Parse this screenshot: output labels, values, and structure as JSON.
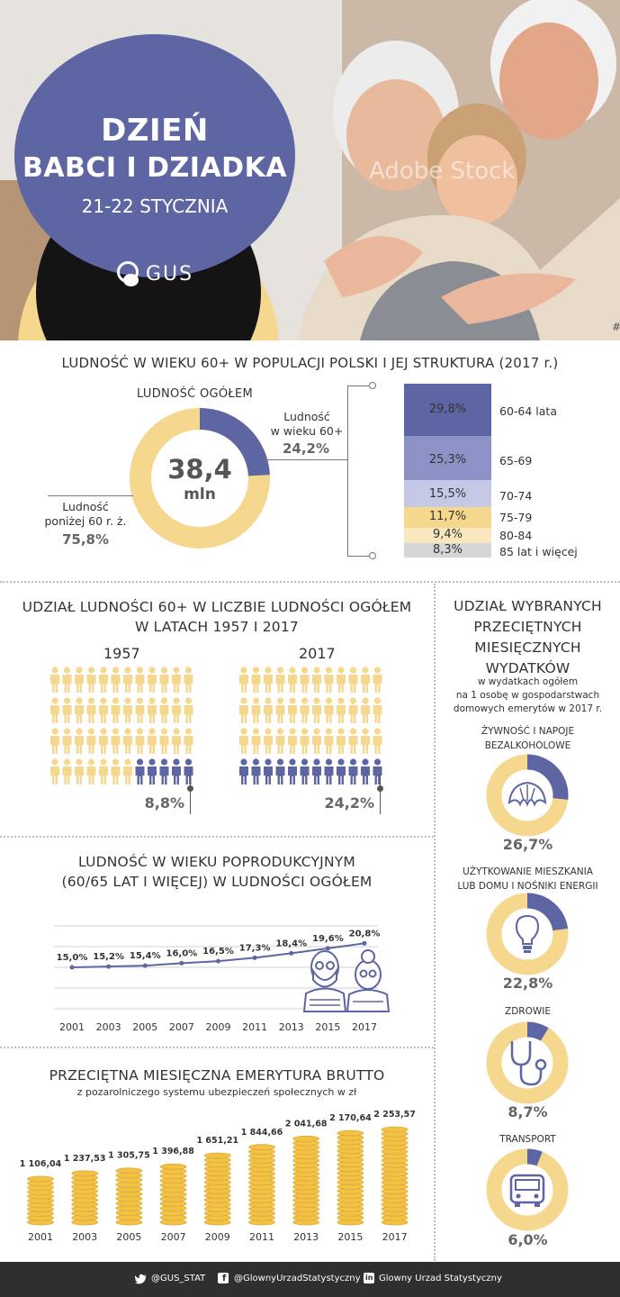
{
  "hero": {
    "title_line1": "DZIEŃ",
    "title_line2": "BABCI I DZIADKA",
    "date": "21-22 STYCZNIA",
    "logo_text": "GUS",
    "watermark": "Adobe Stock",
    "hash": "#"
  },
  "section1": {
    "title": "LUDNOŚĆ W WIEKU 60+ W POPULACJI POLSKI I JEJ STRUKTURA (2017 r.)",
    "donut_heading": "LUDNOŚĆ OGÓŁEM",
    "total_value": "38,4",
    "total_unit": "mln",
    "share_60_label_1": "Ludność",
    "share_60_label_2": "w wieku 60+",
    "share_60_value": "24,2%",
    "share_60_fraction": 0.242,
    "below_60_label_1": "Ludność",
    "below_60_label_2": "poniżej 60 r. ż.",
    "below_60_value": "75,8%",
    "structure": [
      {
        "pct": "29,8%",
        "value": 29.8,
        "label": "60-64 lata",
        "color": "#5e65a3"
      },
      {
        "pct": "25,3%",
        "value": 25.3,
        "label": "65-69",
        "color": "#8c92c6"
      },
      {
        "pct": "15,5%",
        "value": 15.5,
        "label": "70-74",
        "color": "#c5c9e6"
      },
      {
        "pct": "11,7%",
        "value": 11.7,
        "label": "75-79",
        "color": "#f6d78e"
      },
      {
        "pct": "9,4%",
        "value": 9.4,
        "label": "80-84",
        "color": "#f9e8bd"
      },
      {
        "pct": "8,3%",
        "value": 8.3,
        "label": "85 lat i więcej",
        "color": "#d6d6d6"
      }
    ]
  },
  "section2": {
    "title_line1": "UDZIAŁ LUDNOŚCI 60+ W LICZBIE LUDNOŚCI OGÓŁEM",
    "title_line2": "W LATACH 1957 I 2017",
    "year_a": "1957",
    "value_a": "8,8%",
    "filled_a": 5,
    "year_b": "2017",
    "value_b": "24,2%",
    "filled_b": 12
  },
  "section3": {
    "title_line1": "LUDNOŚĆ W WIEKU POPRODUKCYJNYM",
    "title_line2": "(60/65 LAT I WIĘCEJ) W LUDNOŚCI OGÓŁEM",
    "chart_data": {
      "type": "line",
      "x": [
        "2001",
        "2003",
        "2005",
        "2007",
        "2009",
        "2011",
        "2013",
        "2015",
        "2017"
      ],
      "values": [
        15.0,
        15.2,
        15.4,
        16.0,
        16.5,
        17.3,
        18.4,
        19.6,
        20.8
      ],
      "labels": [
        "15,0%",
        "15,2%",
        "15,4%",
        "16,0%",
        "16,5%",
        "17,3%",
        "18,4%",
        "19,6%",
        "20,8%"
      ],
      "ylim": [
        5,
        25
      ],
      "grid": true
    }
  },
  "section4": {
    "title": "PRZECIĘTNA MIESIĘCZNA EMERYTURA BRUTTO",
    "subtitle": "z pozarolniczego systemu ubezpieczeń społecznych w zł",
    "chart_data": {
      "type": "bar",
      "categories": [
        "2001",
        "2003",
        "2005",
        "2007",
        "2009",
        "2011",
        "2013",
        "2015",
        "2017"
      ],
      "values": [
        1106.04,
        1237.53,
        1305.75,
        1396.88,
        1651.21,
        1844.66,
        2041.68,
        2170.64,
        2253.57
      ],
      "labels": [
        "1 106,04",
        "1 237,53",
        "1 305,75",
        "1 396,88",
        "1 651,21",
        "1 844,66",
        "2 041,68",
        "2 170,64",
        "2 253,57"
      ],
      "ylim": [
        0,
        2300
      ]
    }
  },
  "section5": {
    "title_line1": "UDZIAŁ WYBRANYCH",
    "title_line2": "PRZECIĘTNYCH",
    "title_line3": "MIESIĘCZNYCH",
    "title_line4": "WYDATKÓW",
    "subtitle_line1": "w wydatkach ogółem",
    "subtitle_line2": "na 1 osobę w gospodarstwach",
    "subtitle_line3": "domowych emerytów w 2017 r.",
    "items": [
      {
        "label_1": "ŻYWNOŚĆ I NAPOJE",
        "label_2": "BEZALKOHOLOWE",
        "value": "26,7%",
        "fraction": 0.267,
        "icon": "croissant-icon"
      },
      {
        "label_1": "UŻYTKOWANIE MIESZKANIA",
        "label_2": "LUB DOMU I NOŚNIKI ENERGII",
        "value": "22,8%",
        "fraction": 0.228,
        "icon": "lightbulb-icon"
      },
      {
        "label_1": "ZDROWIE",
        "label_2": "",
        "value": "8,7%",
        "fraction": 0.087,
        "icon": "stethoscope-icon"
      },
      {
        "label_1": "TRANSPORT",
        "label_2": "",
        "value": "6,0%",
        "fraction": 0.06,
        "icon": "bus-icon"
      }
    ]
  },
  "footer": {
    "twitter": "@GUS_STAT",
    "facebook": "@GlownyUrzadStatystyczny",
    "linkedin": "Glowny Urzad Statystyczny"
  },
  "colors": {
    "primary": "#5e65a3",
    "accent": "#f6d78e",
    "coin": "#f2c247",
    "footer": "#2f2f2f"
  }
}
